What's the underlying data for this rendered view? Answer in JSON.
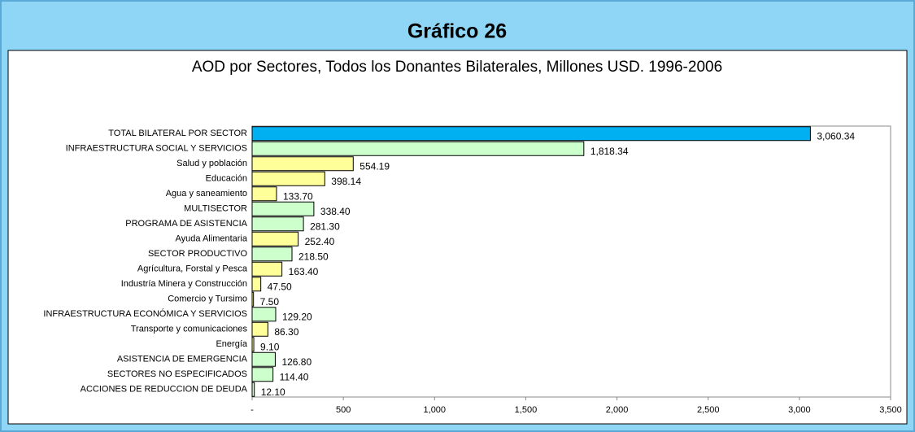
{
  "chart_data": {
    "type": "barh",
    "title": "Gráfico 26",
    "subtitle": "AOD por Sectores, Todos los Donantes Bilaterales, Millones USD. 1996-2006",
    "categories": [
      "TOTAL BILATERAL POR SECTOR",
      "INFRAESTRUCTURA SOCIAL Y SERVICIOS",
      "Salud y población",
      "Educación",
      "Agua y saneamiento",
      "MULTISECTOR",
      "PROGRAMA DE ASISTENCIA",
      "Ayuda Alimentaria",
      "SECTOR PRODUCTIVO",
      "Agrícultura, Forstal y Pesca",
      "Industría Minera y Construcción",
      "Comercio y Tursimo",
      "INFRAESTRUCTURA ECONÓMICA Y SERVICIOS",
      "Transporte y comunicaciones",
      "Energía",
      "ASISTENCIA DE EMERGENCIA",
      "SECTORES NO ESPECIFICADOS",
      "ACCIONES DE REDUCCION DE DEUDA"
    ],
    "values": [
      3060.34,
      1818.34,
      554.19,
      398.14,
      133.7,
      338.4,
      281.3,
      252.4,
      218.5,
      163.4,
      47.5,
      7.5,
      129.2,
      86.3,
      9.1,
      126.8,
      114.4,
      12.1
    ],
    "value_labels": [
      "3,060.34",
      "1,818.34",
      "554.19",
      "398.14",
      "133.70",
      "338.40",
      "281.30",
      "252.40",
      "218.50",
      "163.40",
      "47.50",
      "7.50",
      "129.20",
      "86.30",
      "9.10",
      "126.80",
      "114.40",
      "12.10"
    ],
    "colors": [
      "#00b0f0",
      "#ccffcc",
      "#ffff99",
      "#ffff99",
      "#ffff99",
      "#ccffcc",
      "#ccffcc",
      "#ffff99",
      "#ccffcc",
      "#ffff99",
      "#ffff99",
      "#ffff99",
      "#ccffcc",
      "#ffff99",
      "#ffff99",
      "#ccffcc",
      "#ccffcc",
      "#ccffcc"
    ],
    "xlim": [
      0,
      3500
    ],
    "xticks": [
      {
        "value": 0,
        "label": "-"
      },
      500,
      {
        "value": 1000,
        "label": "1,000"
      },
      {
        "value": 1500,
        "label": "1,500"
      },
      {
        "value": 2000,
        "label": "2,000"
      },
      {
        "value": 2500,
        "label": "2,500"
      },
      {
        "value": 3000,
        "label": "3,000"
      },
      {
        "value": 3500,
        "label": "3,500"
      }
    ]
  }
}
